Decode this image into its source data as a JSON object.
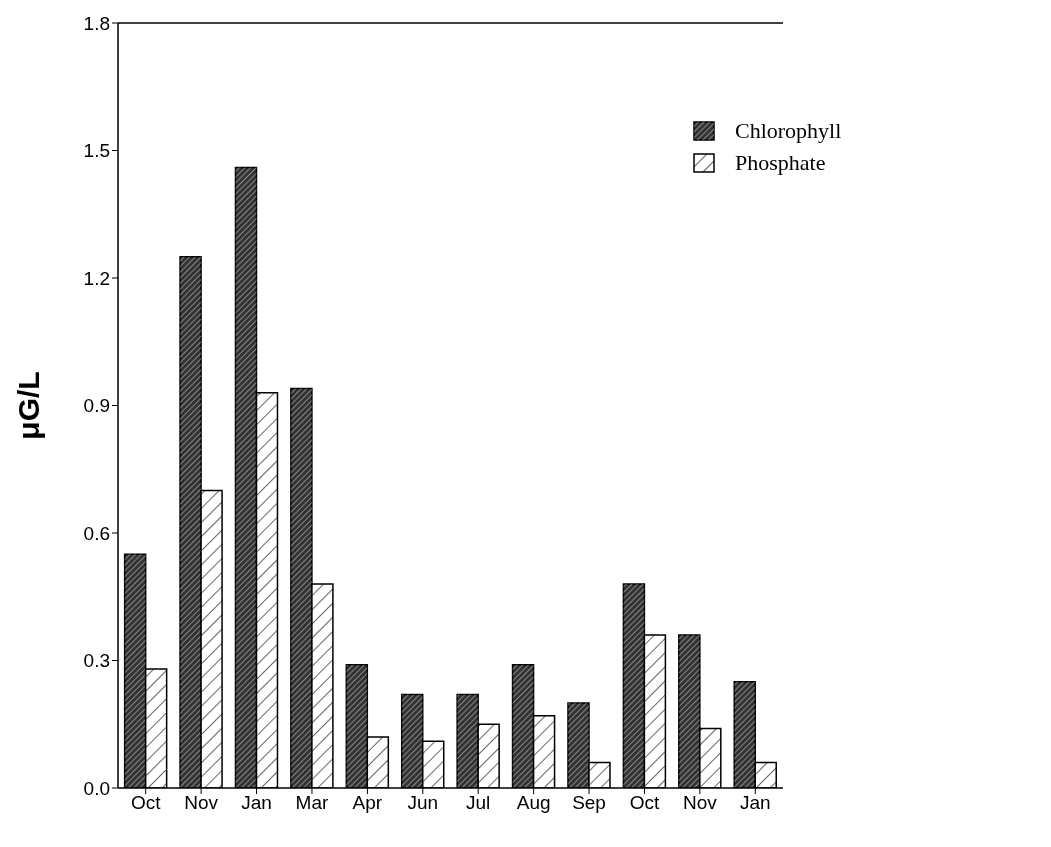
{
  "chart_data": {
    "type": "bar",
    "ylabel": "μG/L",
    "categories": [
      "Oct",
      "Nov",
      "Jan",
      "Mar",
      "Apr",
      "Jun",
      "Jul",
      "Aug",
      "Sep",
      "Oct",
      "Nov",
      "Jan"
    ],
    "series": [
      {
        "name": "Chlorophyll",
        "color": "#333333",
        "values": [
          0.55,
          1.25,
          1.46,
          0.94,
          0.29,
          0.22,
          0.22,
          0.29,
          0.2,
          0.48,
          0.36,
          0.25
        ]
      },
      {
        "name": "Phosphate",
        "color": "#ffffff",
        "values": [
          0.28,
          0.7,
          0.93,
          0.48,
          0.12,
          0.11,
          0.15,
          0.17,
          0.06,
          0.36,
          0.14,
          0.06
        ]
      }
    ],
    "ylim": [
      0,
      1.8
    ],
    "yticks": [
      {
        "value": 0,
        "label": "0.0"
      },
      0.3,
      0.6,
      0.9,
      1.2,
      1.5,
      1.8
    ],
    "grid": false,
    "legend": "top right"
  }
}
